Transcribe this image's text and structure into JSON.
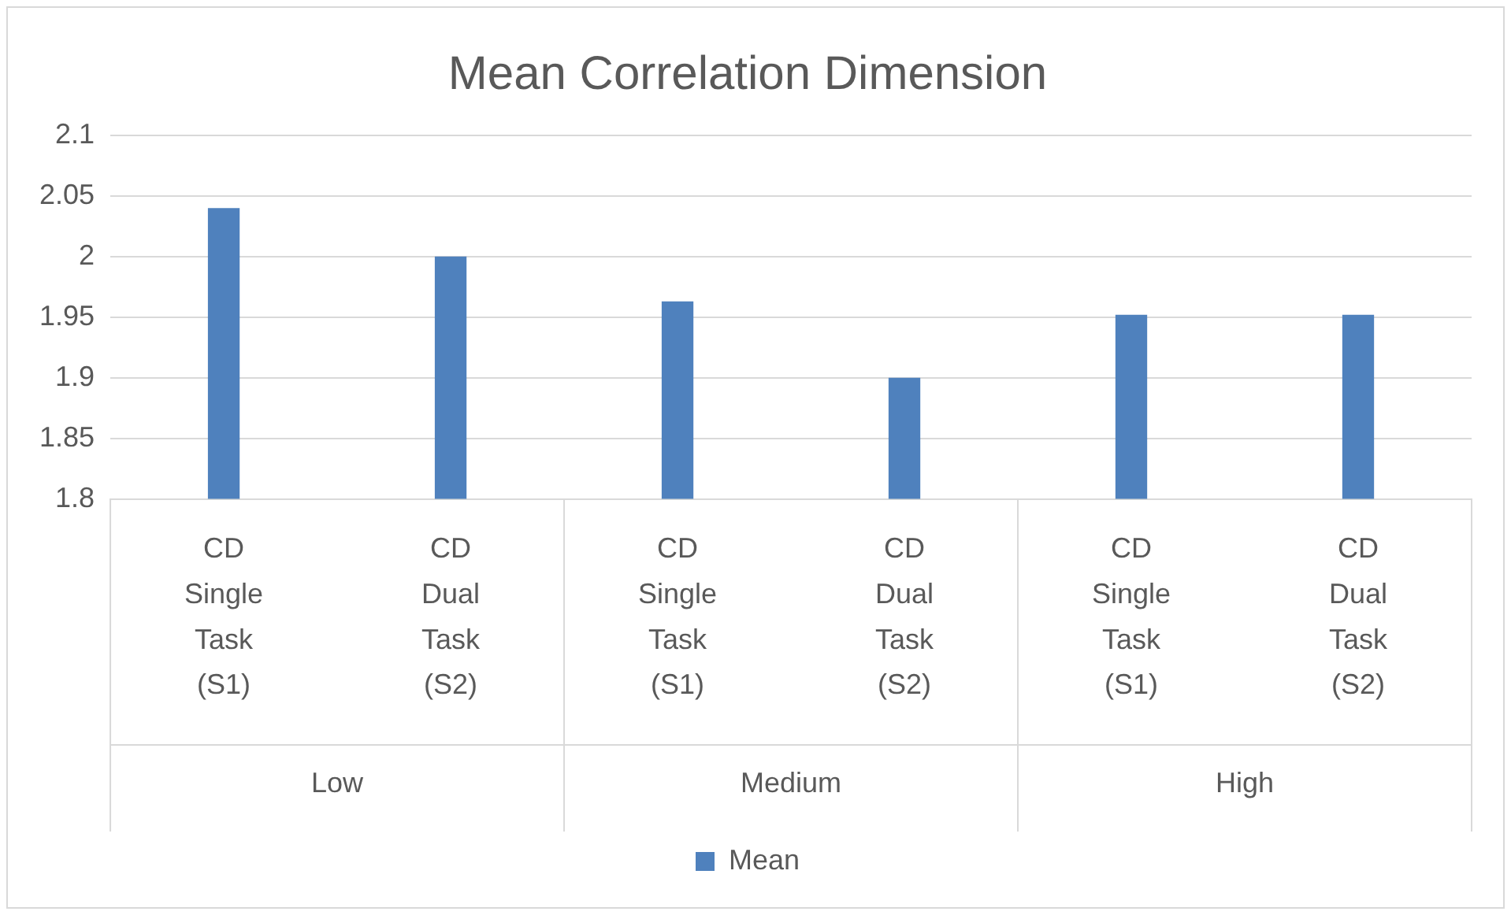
{
  "chart_data": {
    "type": "bar",
    "title": "Mean Correlation Dimension",
    "categories": [
      "CD Single Task (S1)",
      "CD Dual Task (S2)",
      "CD Single Task (S1)",
      "CD Dual Task (S2)",
      "CD Single Task (S1)",
      "CD Dual Task (S2)"
    ],
    "series": [
      {
        "name": "Mean",
        "color": "#4f81bd",
        "values": [
          2.04,
          2.0,
          1.963,
          1.9,
          1.952,
          1.952
        ]
      }
    ],
    "annotations": [
      "Low",
      "Medium",
      "High"
    ],
    "ylim": [
      1.8,
      2.1
    ],
    "yticks": [
      1.8,
      1.85,
      1.9,
      1.95,
      2,
      2.05,
      2.1
    ],
    "grid": "y",
    "legend": "bottom"
  }
}
